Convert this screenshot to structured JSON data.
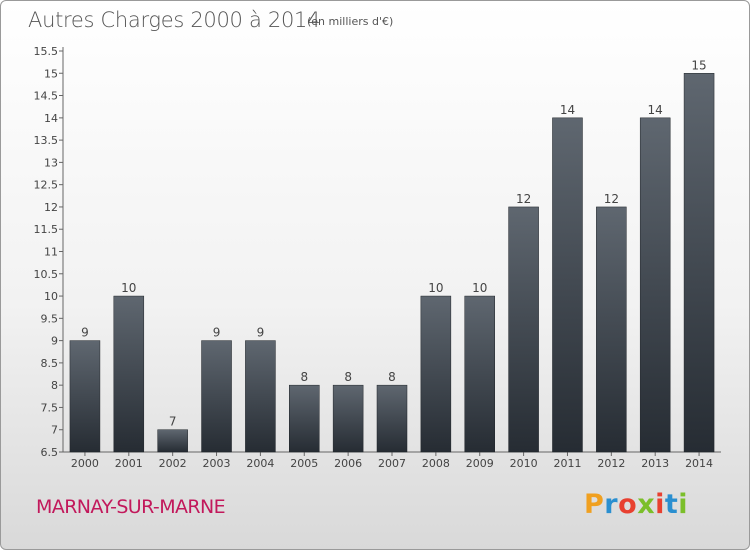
{
  "chart_data": {
    "type": "bar",
    "title": "Autres Charges 2000 à 2014",
    "subtitle": "(en milliers d'€)",
    "categories": [
      "2000",
      "2001",
      "2002",
      "2003",
      "2004",
      "2005",
      "2006",
      "2007",
      "2008",
      "2009",
      "2010",
      "2011",
      "2012",
      "2013",
      "2014"
    ],
    "values": [
      9,
      10,
      7,
      9,
      9,
      8,
      8,
      8,
      10,
      10,
      12,
      14,
      12,
      14,
      15
    ],
    "ylim": [
      6.5,
      15.5
    ],
    "yticks": [
      "6.5",
      "7",
      "7.5",
      "8",
      "8.5",
      "9",
      "9.5",
      "10",
      "10.5",
      "11",
      "11.5",
      "12",
      "12.5",
      "13",
      "13.5",
      "14",
      "14.5",
      "15",
      "15.5"
    ],
    "grid": false,
    "bar_color": "#3a4048"
  },
  "footer": {
    "commune": "MARNAY-SUR-MARNE",
    "brand_letters": [
      "P",
      "r",
      "o",
      "x",
      "i",
      "t",
      "i"
    ],
    "brand_colors": [
      "#f0a020",
      "#2a8fd0",
      "#e84030",
      "#7bbf2a",
      "#e84030",
      "#2a8fd0",
      "#7bbf2a"
    ]
  }
}
